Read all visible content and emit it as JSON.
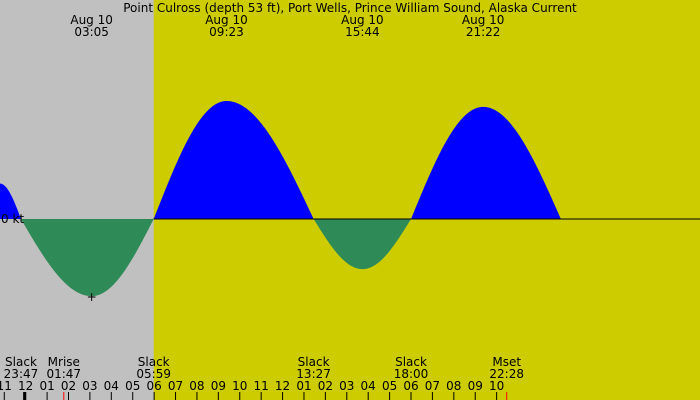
{
  "chart_data": {
    "type": "area",
    "title": "Point Culross (depth 53 ft), Port Wells, Prince William Sound, Alaska Current",
    "xlabel": "",
    "ylabel": "",
    "x_unit": "hour of day",
    "xlim": [
      -1.2,
      31.5
    ],
    "ylim": [
      -1.05,
      1.0
    ],
    "zero_label": "0 kt",
    "colors": {
      "night": "#c0c0c0",
      "day": "#cccc00",
      "flood": "#0000ff",
      "ebb": "#2e8b57",
      "moon_tick": "#ff0000",
      "now_tick": "#000000"
    },
    "day_start": 5.98,
    "extremes": [
      {
        "time": -1.2,
        "value": 0.3
      },
      {
        "time": -0.22,
        "value": 0.0
      },
      {
        "time": 3.08,
        "value": -1.0
      },
      {
        "time": 5.98,
        "value": 0.0
      },
      {
        "time": 9.38,
        "value": 1.0
      },
      {
        "time": 13.45,
        "value": 0.0
      },
      {
        "time": 15.73,
        "value": -0.65
      },
      {
        "time": 18.0,
        "value": 0.0
      },
      {
        "time": 21.37,
        "value": 0.95
      },
      {
        "time": 25.0,
        "value": 0.0
      }
    ],
    "top_labels": [
      {
        "date": "Aug 10",
        "time": "03:05",
        "at": 3.08
      },
      {
        "date": "Aug 10",
        "time": "09:23",
        "at": 9.38
      },
      {
        "date": "Aug 10",
        "time": "15:44",
        "at": 15.73
      },
      {
        "date": "Aug 10",
        "time": "21:22",
        "at": 21.37
      }
    ],
    "bottom_events": [
      {
        "name": "Slack",
        "time": "23:47",
        "at": -0.22
      },
      {
        "name": "Mrise",
        "time": "01:47",
        "at": 1.78
      },
      {
        "name": "Slack",
        "time": "05:59",
        "at": 5.98
      },
      {
        "name": "Slack",
        "time": "13:27",
        "at": 13.45
      },
      {
        "name": "Slack",
        "time": "18:00",
        "at": 18.0
      },
      {
        "name": "Mset",
        "time": "22:28",
        "at": 22.47
      }
    ],
    "hour_ticks": [
      "11",
      "12",
      "01",
      "02",
      "03",
      "04",
      "05",
      "06",
      "07",
      "08",
      "09",
      "10",
      "11",
      "12",
      "01",
      "02",
      "03",
      "04",
      "05",
      "06",
      "07",
      "08",
      "09",
      "10"
    ],
    "hour_tick_start": -1,
    "marker": {
      "symbol": "+",
      "at": 3.08,
      "value": -1.0
    },
    "moon_ticks": [
      1.78,
      22.47
    ],
    "now_tick": -0.05
  }
}
